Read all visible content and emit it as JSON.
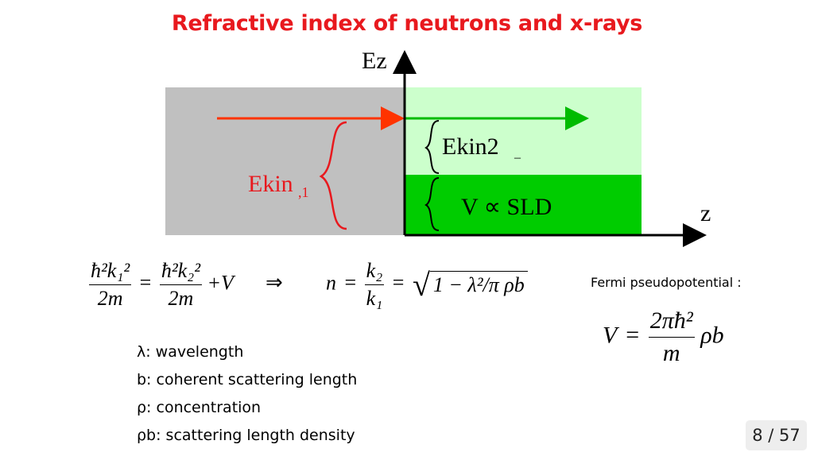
{
  "slide": {
    "title": "Refractive index of neutrons and x-rays"
  },
  "diagram": {
    "axis_y_label": "Ez",
    "axis_x_label": "z",
    "ekin1_label": "Ekin",
    "ekin1_subscript": ",1",
    "ekin2_label": "Ekin2",
    "potential_label": "V ∝ SLD",
    "colors": {
      "incident_region": "#c0c0c0",
      "transmitted_region": "#ccffcc",
      "potential_region": "#00cc00",
      "incident_arrow": "#ff3300",
      "transmitted_arrow": "#00bb00"
    }
  },
  "equations": {
    "energy_conservation": {
      "lhs_num": "ħ²k₁²",
      "lhs_den": "2m",
      "rhs_num": "ħ²k₂²",
      "rhs_den": "2m",
      "rhs_add": "+V",
      "implies": "⇒"
    },
    "refractive_index": {
      "n": "n",
      "ratio_num": "k₂",
      "ratio_den": "k₁",
      "sqrt_body": "1 − λ²/π ρb"
    }
  },
  "legend": [
    "λ: wavelength",
    "b: coherent scattering length",
    "ρ: concentration",
    "ρb: scattering length density"
  ],
  "fermi": {
    "title": "Fermi pseudopotential :",
    "lhs": "V",
    "num": "2πħ²",
    "den": "m",
    "tail": "ρb"
  },
  "page": {
    "counter": "8 / 57"
  }
}
